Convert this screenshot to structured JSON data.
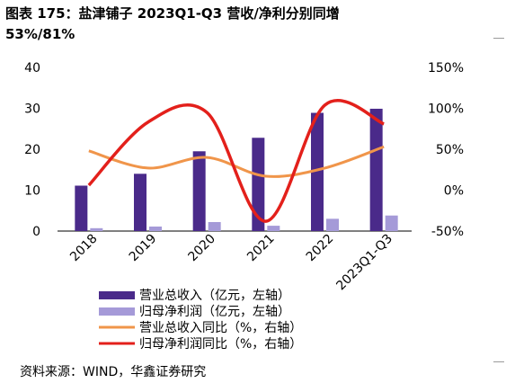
{
  "title": {
    "line1": "图表 175：盐津铺子 2023Q1-Q3 营收/净利分别同增",
    "line2": "53%/81%"
  },
  "source": "资料来源：WIND，华鑫证券研究",
  "colors": {
    "revenue_bar": "#4a2a8a",
    "profit_bar": "#a59ad8",
    "revenue_yoy_line": "#f0954a",
    "profit_yoy_line": "#e3201b"
  },
  "chart_data": {
    "type": "bar",
    "categories": [
      "2018",
      "2019",
      "2020",
      "2021",
      "2022",
      "2023Q1-Q3"
    ],
    "series": [
      {
        "name": "营业总收入（亿元，左轴）",
        "type": "bar",
        "axis": "left",
        "values": [
          11.1,
          14.0,
          19.5,
          22.8,
          28.9,
          29.9
        ]
      },
      {
        "name": "归母净利润（亿元，左轴）",
        "type": "bar",
        "axis": "left",
        "values": [
          0.7,
          1.1,
          2.2,
          1.3,
          3.0,
          3.8
        ]
      },
      {
        "name": "营业总收入同比（%，右轴）",
        "type": "line",
        "axis": "right",
        "values": [
          48,
          27,
          40,
          17,
          27,
          53
        ]
      },
      {
        "name": "归母净利润同比（%，右轴）",
        "type": "line",
        "axis": "right",
        "values": [
          6,
          83,
          95,
          -38,
          104,
          81
        ]
      }
    ],
    "left_axis": {
      "ylim": [
        0,
        40
      ],
      "ticks": [
        "0",
        "10",
        "20",
        "30",
        "40"
      ]
    },
    "right_axis": {
      "ylim": [
        -50,
        150
      ],
      "ticks": [
        "-50%",
        "0%",
        "50%",
        "100%",
        "150%"
      ]
    },
    "legend_position": "bottom",
    "grid": false
  }
}
